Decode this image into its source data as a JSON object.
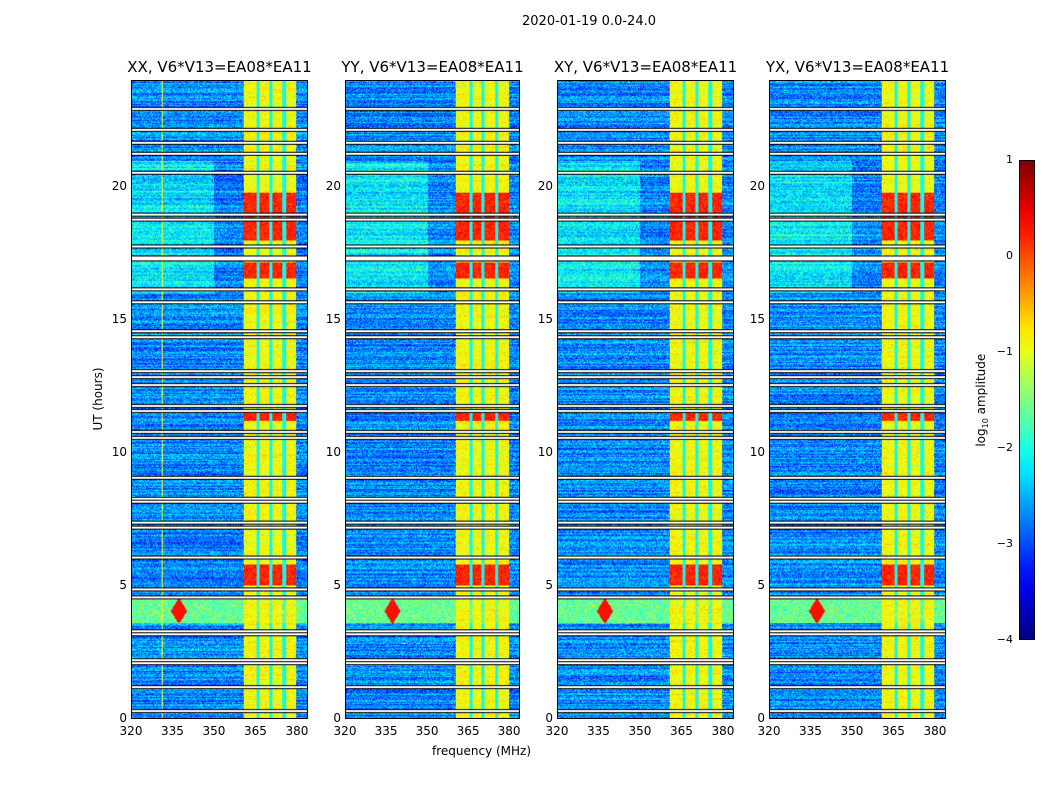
{
  "chart_data": {
    "type": "heatmap",
    "suptitle": "2020-01-19 0.0-24.0",
    "xlabel": "frequency (MHz)",
    "ylabel": "UT (hours)",
    "xlim": [
      320,
      384
    ],
    "ylim": [
      0,
      24
    ],
    "xticks": [
      "320",
      "335",
      "350",
      "365",
      "380"
    ],
    "xtick_values": [
      320,
      335,
      350,
      365,
      380
    ],
    "yticks": [
      "0",
      "5",
      "10",
      "15",
      "20"
    ],
    "ytick_values": [
      0,
      5,
      10,
      15,
      20
    ],
    "colorbar": {
      "label": "log10 amplitude",
      "label_main": "log",
      "label_sub": "10",
      "label_rest": " amplitude",
      "range": [
        -4,
        1
      ],
      "ticks": [
        "1",
        "0",
        "−1",
        "−2",
        "−3",
        "−4"
      ],
      "tick_values": [
        1,
        0,
        -1,
        -2,
        -3,
        -4
      ],
      "colormap": "jet"
    },
    "panels": [
      {
        "title": "XX, V6*V13=EA08*EA11",
        "seed": 1,
        "rfi_line_mhz": 331
      },
      {
        "title": "YY, V6*V13=EA08*EA11",
        "seed": 2,
        "rfi_line_mhz": 331
      },
      {
        "title": "XY, V6*V13=EA08*EA11",
        "seed": 3,
        "rfi_line_mhz": 331
      },
      {
        "title": "YX, V6*V13=EA08*EA11",
        "seed": 4,
        "rfi_line_mhz": 331
      }
    ],
    "features": {
      "background_log_amp": -2.7,
      "rfi_band_mhz": [
        360.5,
        380
      ],
      "rfi_band_log_amp": -0.9,
      "band_gaps_mhz": [
        366,
        370.5,
        375.5
      ],
      "strong_rfi_hours": [
        [
          18,
          19.8
        ],
        [
          5,
          5.8
        ],
        [
          16.6,
          17.2
        ],
        [
          11.2,
          11.6
        ]
      ],
      "strong_rfi_log_amp": 0.2,
      "broadband_rfi_hours": [
        3.6,
        4.5
      ],
      "broadband_blob_mhz": 337,
      "flagged_hours": [
        0.3,
        1.2,
        2.1,
        2.2,
        3.2,
        3.3,
        4.6,
        4.9,
        6.1,
        7.2,
        7.4,
        8.2,
        8.3,
        9.1,
        10.6,
        10.8,
        11.6,
        11.8,
        12.6,
        12.9,
        13.1,
        14.4,
        14.6,
        15.7,
        16.2,
        17.3,
        17.4,
        17.8,
        18.8,
        19.0,
        20.6,
        21.3,
        21.7,
        22.2,
        23.0
      ]
    }
  }
}
